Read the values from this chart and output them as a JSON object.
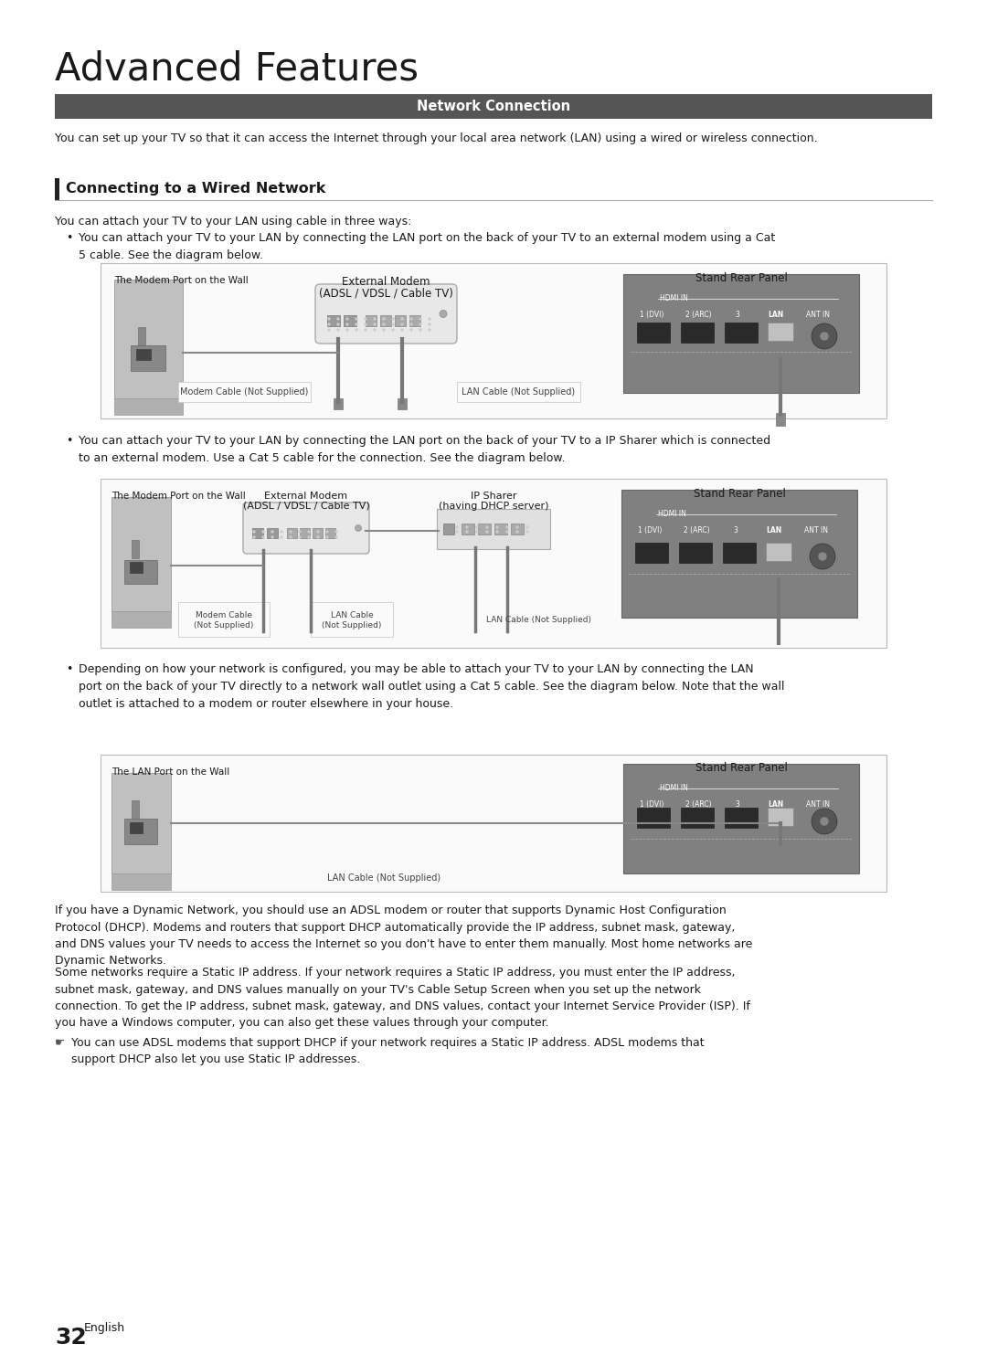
{
  "title": "Advanced Features",
  "section_header": "Network Connection",
  "section_header_bg": "#555555",
  "subsection_title": "Connecting to a Wired Network",
  "intro_text": "You can set up your TV so that it can access the Internet through your local area network (LAN) using a wired or wireless connection.",
  "bullet1_intro": "You can attach your TV to your LAN using cable in three ways:",
  "bullet1_text": "You can attach your TV to your LAN by connecting the LAN port on the back of your TV to an external modem using a Cat\n5 cable. See the diagram below.",
  "bullet2_text": "You can attach your TV to your LAN by connecting the LAN port on the back of your TV to a IP Sharer which is connected\nto an external modem. Use a Cat 5 cable for the connection. See the diagram below.",
  "bullet3_text": "Depending on how your network is configured, you may be able to attach your TV to your LAN by connecting the LAN\nport on the back of your TV directly to a network wall outlet using a Cat 5 cable. See the diagram below. Note that the wall\noutlet is attached to a modem or router elsewhere in your house.",
  "footer_text1": "If you have a Dynamic Network, you should use an ADSL modem or router that supports Dynamic Host Configuration\nProtocol (DHCP). Modems and routers that support DHCP automatically provide the IP address, subnet mask, gateway,\nand DNS values your TV needs to access the Internet so you don't have to enter them manually. Most home networks are\nDynamic Networks.",
  "footer_text2": "Some networks require a Static IP address. If your network requires a Static IP address, you must enter the IP address,\nsubnet mask, gateway, and DNS values manually on your TV's Cable Setup Screen when you set up the network\nconnection. To get the IP address, subnet mask, gateway, and DNS values, contact your Internet Service Provider (ISP). If\nyou have a Windows computer, you can also get these values through your computer.",
  "note_text": "You can use ADSL modems that support DHCP if your network requires a Static IP address. ADSL modems that\nsupport DHCP also let you use Static IP addresses.",
  "page_number": "32",
  "page_lang": "English",
  "bg_color": "#ffffff",
  "diag1_label_wall": "The Modem Port on the Wall",
  "diag1_label_modem": "External Modem\n(ADSL / VDSL / Cable TV)",
  "diag1_label_panel": "Stand Rear Panel",
  "diag1_label_cable1": "Modem Cable (Not Supplied)",
  "diag1_label_cable2": "LAN Cable (Not Supplied)",
  "diag2_label_wall": "The Modem Port on the Wall",
  "diag2_label_modem": "External Modem\n(ADSL / VDSL / Cable TV)",
  "diag2_label_sharer": "IP Sharer\n(having DHCP server)",
  "diag2_label_panel": "Stand Rear Panel",
  "diag2_label_cable1": "Modem Cable\n(Not Supplied)",
  "diag2_label_cable2": "LAN Cable\n(Not Supplied)",
  "diag2_label_cable3": "LAN Cable (Not Supplied)",
  "diag3_label_wall": "The LAN Port on the Wall",
  "diag3_label_panel": "Stand Rear Panel",
  "diag3_label_cable": "LAN Cable (Not Supplied)"
}
